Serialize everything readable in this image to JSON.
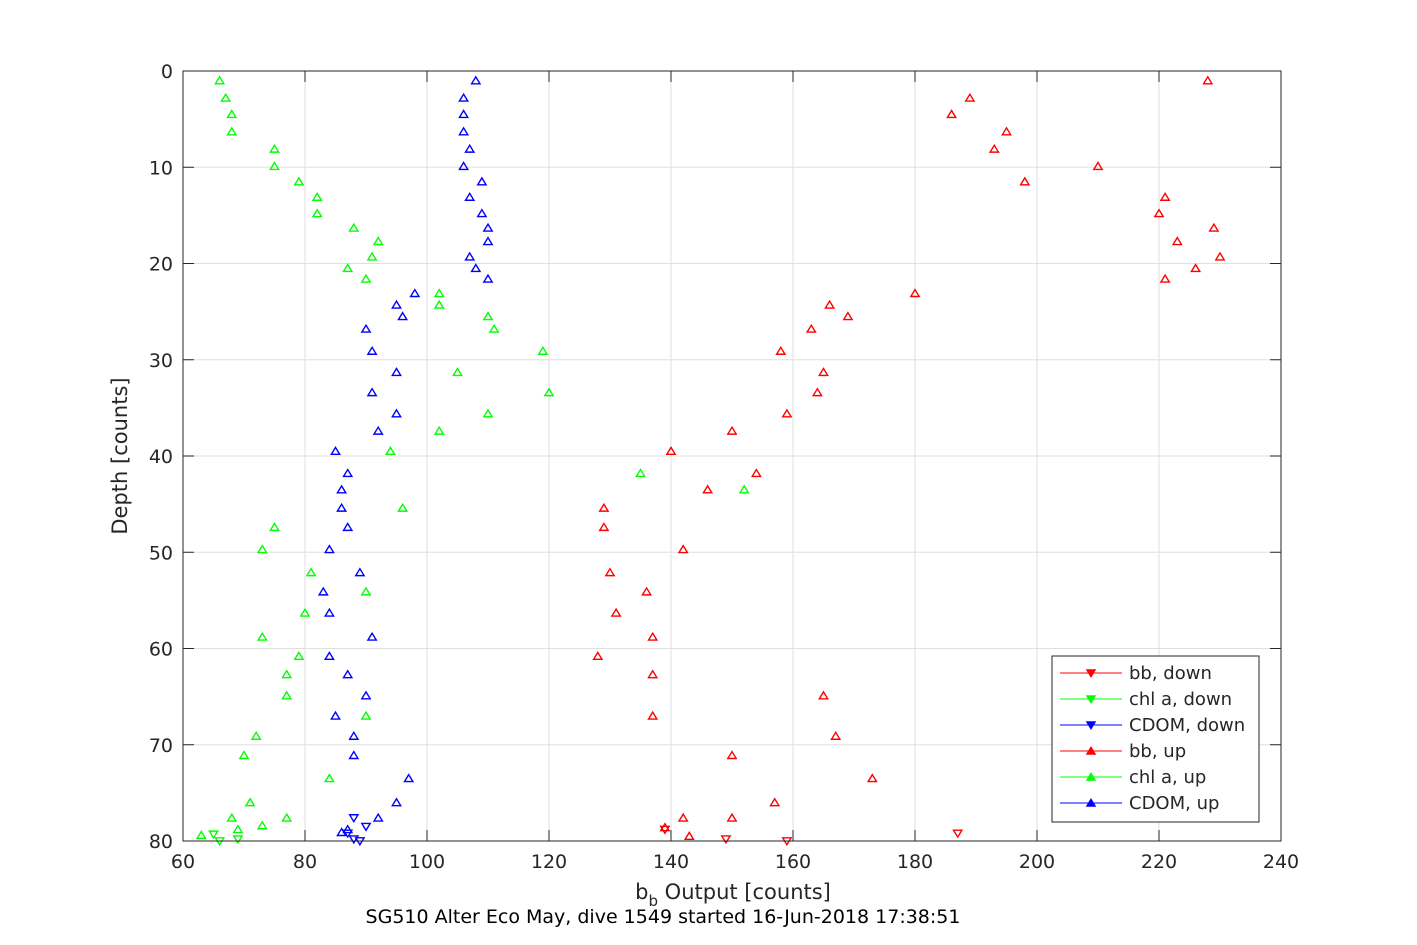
{
  "chart_data": {
    "type": "scatter",
    "xlabel_base": "b",
    "xlabel_sub": "b",
    "xlabel_rest": " Output [counts]",
    "ylabel": "Depth [counts]",
    "caption": "SG510 Alter Eco May, dive 1549 started 16-Jun-2018 17:38:51",
    "xlim": [
      60,
      240
    ],
    "ylim": [
      0,
      80
    ],
    "y_reversed": true,
    "grid": true,
    "legend_position": "bottom-right",
    "xticks": [
      60,
      80,
      100,
      120,
      140,
      160,
      180,
      200,
      220,
      240
    ],
    "yticks": [
      0,
      10,
      20,
      30,
      40,
      50,
      60,
      70,
      80
    ],
    "series": [
      {
        "name": "bb, down",
        "color": "#ff0000",
        "marker": "triangle-down",
        "points": [
          [
            187,
            79.2
          ],
          [
            149,
            79.8
          ],
          [
            159,
            80.0
          ],
          [
            139,
            78.8
          ]
        ]
      },
      {
        "name": "chl a, down",
        "color": "#00ff00",
        "marker": "triangle-down",
        "points": [
          [
            65,
            79.3
          ],
          [
            69,
            79.8
          ],
          [
            66,
            80.0
          ]
        ]
      },
      {
        "name": "CDOM, down",
        "color": "#0000ff",
        "marker": "triangle-down",
        "points": [
          [
            88,
            77.6
          ],
          [
            90,
            78.5
          ],
          [
            87,
            79.2
          ],
          [
            88,
            79.8
          ],
          [
            89,
            80.0
          ]
        ]
      },
      {
        "name": "bb, up",
        "color": "#ff0000",
        "marker": "triangle-up",
        "points": [
          [
            228,
            1.0
          ],
          [
            189,
            2.8
          ],
          [
            186,
            4.5
          ],
          [
            195,
            6.3
          ],
          [
            193,
            8.1
          ],
          [
            210,
            9.9
          ],
          [
            198,
            11.5
          ],
          [
            221,
            13.1
          ],
          [
            220,
            14.8
          ],
          [
            229,
            16.3
          ],
          [
            223,
            17.7
          ],
          [
            230,
            19.3
          ],
          [
            226,
            20.5
          ],
          [
            221,
            21.6
          ],
          [
            180,
            23.1
          ],
          [
            166,
            24.3
          ],
          [
            169,
            25.5
          ],
          [
            163,
            26.8
          ],
          [
            158,
            29.1
          ],
          [
            165,
            31.3
          ],
          [
            164,
            33.4
          ],
          [
            159,
            35.6
          ],
          [
            150,
            37.4
          ],
          [
            140,
            39.5
          ],
          [
            154,
            41.8
          ],
          [
            146,
            43.5
          ],
          [
            129,
            45.4
          ],
          [
            129,
            47.4
          ],
          [
            142,
            49.7
          ],
          [
            130,
            52.1
          ],
          [
            136,
            54.1
          ],
          [
            131,
            56.3
          ],
          [
            137,
            58.8
          ],
          [
            128,
            60.8
          ],
          [
            137,
            62.7
          ],
          [
            165,
            64.9
          ],
          [
            137,
            67.0
          ],
          [
            167,
            69.1
          ],
          [
            150,
            71.1
          ],
          [
            173,
            73.5
          ],
          [
            157,
            76.0
          ],
          [
            142,
            77.6
          ],
          [
            150,
            77.6
          ],
          [
            139,
            78.6
          ],
          [
            143,
            79.5
          ]
        ]
      },
      {
        "name": "chl a, up",
        "color": "#00ff00",
        "marker": "triangle-up",
        "points": [
          [
            66,
            1.0
          ],
          [
            67,
            2.8
          ],
          [
            68,
            4.5
          ],
          [
            68,
            6.3
          ],
          [
            75,
            8.1
          ],
          [
            75,
            9.9
          ],
          [
            79,
            11.5
          ],
          [
            82,
            13.1
          ],
          [
            82,
            14.8
          ],
          [
            88,
            16.3
          ],
          [
            92,
            17.7
          ],
          [
            91,
            19.3
          ],
          [
            87,
            20.5
          ],
          [
            90,
            21.6
          ],
          [
            102,
            23.1
          ],
          [
            102,
            24.3
          ],
          [
            110,
            25.5
          ],
          [
            111,
            26.8
          ],
          [
            119,
            29.1
          ],
          [
            105,
            31.3
          ],
          [
            120,
            33.4
          ],
          [
            110,
            35.6
          ],
          [
            102,
            37.4
          ],
          [
            94,
            39.5
          ],
          [
            135,
            41.8
          ],
          [
            152,
            43.5
          ],
          [
            96,
            45.4
          ],
          [
            75,
            47.4
          ],
          [
            73,
            49.7
          ],
          [
            81,
            52.1
          ],
          [
            90,
            54.1
          ],
          [
            80,
            56.3
          ],
          [
            73,
            58.8
          ],
          [
            79,
            60.8
          ],
          [
            77,
            62.7
          ],
          [
            77,
            64.9
          ],
          [
            90,
            67.0
          ],
          [
            72,
            69.1
          ],
          [
            70,
            71.1
          ],
          [
            84,
            73.5
          ],
          [
            71,
            76.0
          ],
          [
            68,
            77.6
          ],
          [
            77,
            77.6
          ],
          [
            73,
            78.4
          ],
          [
            69,
            78.8
          ],
          [
            63,
            79.4
          ]
        ]
      },
      {
        "name": "CDOM, up",
        "color": "#0000ff",
        "marker": "triangle-up",
        "points": [
          [
            108,
            1.0
          ],
          [
            106,
            2.8
          ],
          [
            106,
            4.5
          ],
          [
            106,
            6.3
          ],
          [
            107,
            8.1
          ],
          [
            106,
            9.9
          ],
          [
            109,
            11.5
          ],
          [
            107,
            13.1
          ],
          [
            109,
            14.8
          ],
          [
            110,
            16.3
          ],
          [
            110,
            17.7
          ],
          [
            107,
            19.3
          ],
          [
            108,
            20.5
          ],
          [
            110,
            21.6
          ],
          [
            98,
            23.1
          ],
          [
            95,
            24.3
          ],
          [
            96,
            25.5
          ],
          [
            90,
            26.8
          ],
          [
            91,
            29.1
          ],
          [
            95,
            31.3
          ],
          [
            91,
            33.4
          ],
          [
            95,
            35.6
          ],
          [
            92,
            37.4
          ],
          [
            85,
            39.5
          ],
          [
            87,
            41.8
          ],
          [
            86,
            43.5
          ],
          [
            86,
            45.4
          ],
          [
            87,
            47.4
          ],
          [
            84,
            49.7
          ],
          [
            89,
            52.1
          ],
          [
            83,
            54.1
          ],
          [
            84,
            56.3
          ],
          [
            91,
            58.8
          ],
          [
            84,
            60.8
          ],
          [
            87,
            62.7
          ],
          [
            90,
            64.9
          ],
          [
            85,
            67.0
          ],
          [
            88,
            69.1
          ],
          [
            88,
            71.1
          ],
          [
            97,
            73.5
          ],
          [
            95,
            76.0
          ],
          [
            92,
            77.6
          ],
          [
            87,
            78.8
          ],
          [
            86,
            79.1
          ]
        ]
      }
    ]
  }
}
